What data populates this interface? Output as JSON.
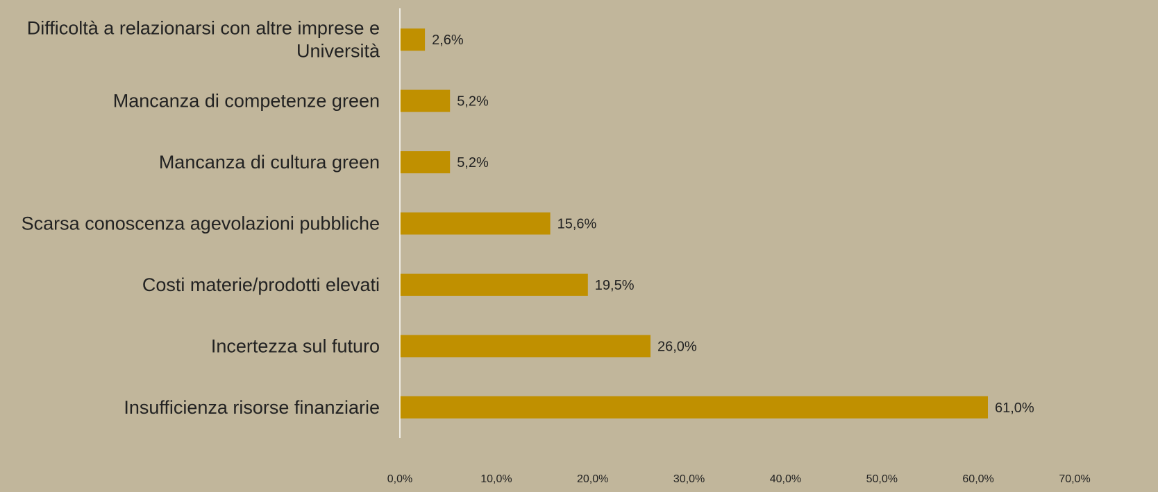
{
  "chart_data": {
    "type": "bar",
    "orientation": "horizontal",
    "categories": [
      [
        "Difficoltà a relazionarsi con altre imprese e",
        "Università"
      ],
      [
        "Mancanza di competenze green"
      ],
      [
        "Mancanza di cultura green"
      ],
      [
        "Scarsa conoscenza agevolazioni pubbliche"
      ],
      [
        "Costi materie/prodotti elevati"
      ],
      [
        "Incertezza sul futuro"
      ],
      [
        "Insufficienza risorse finanziarie"
      ]
    ],
    "values": [
      2.6,
      5.2,
      5.2,
      15.6,
      19.5,
      26.0,
      61.0
    ],
    "data_labels": [
      "2,6%",
      "5,2%",
      "5,2%",
      "15,6%",
      "19,5%",
      "26,0%",
      "61,0%"
    ],
    "xlim": [
      0,
      70
    ],
    "x_ticks": [
      0,
      10,
      20,
      30,
      40,
      50,
      60,
      70
    ],
    "x_tick_labels": [
      "0,0%",
      "10,0%",
      "20,0%",
      "30,0%",
      "40,0%",
      "50,0%",
      "60,0%",
      "70,0%"
    ],
    "bar_color": "#c09000",
    "axis_color": "#ffffff",
    "background_color": "#c1b69b",
    "grid": false,
    "legend": "none"
  }
}
